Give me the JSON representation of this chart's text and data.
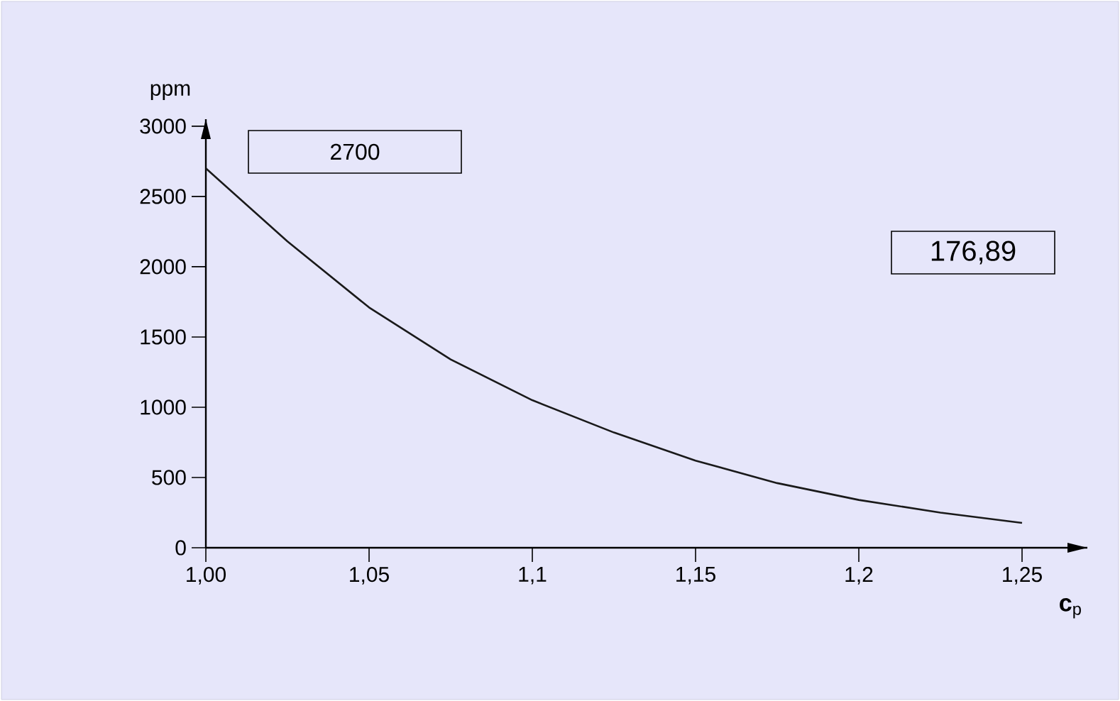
{
  "chart_data": {
    "type": "line",
    "xlabel": "**c**$_{p}$",
    "ylabel": "ppm",
    "x": [
      1.0,
      1.025,
      1.05,
      1.075,
      1.1,
      1.125,
      1.15,
      1.175,
      1.2,
      1.225,
      1.25
    ],
    "series": [
      {
        "color": "#1a1a1a",
        "values": [
          2700,
          2180,
          1710,
          1340,
          1050,
          820,
          620,
          460,
          340,
          250,
          176.89
        ]
      }
    ],
    "xlim": [
      1.0,
      1.27
    ],
    "ylim": [
      0,
      3050
    ],
    "xticks": [
      {
        "value": 1.0,
        "label": "1,00"
      },
      {
        "value": 1.05,
        "label": "1,05"
      },
      {
        "value": 1.1,
        "label": "1,1"
      },
      {
        "value": 1.15,
        "label": "1,15"
      },
      {
        "value": 1.2,
        "label": "1,2"
      },
      {
        "value": 1.25,
        "label": "1,25"
      }
    ],
    "yticks": [
      0,
      500,
      1000,
      1500,
      2000,
      2500,
      3000
    ],
    "annotations": [
      "2700",
      "176,89"
    ],
    "grid": false,
    "marker": "none",
    "line_style": "solid"
  }
}
